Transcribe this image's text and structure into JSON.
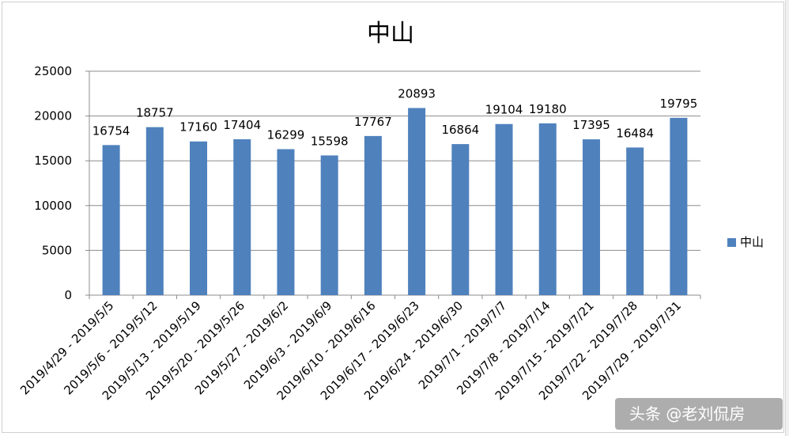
{
  "chart_data": {
    "type": "bar",
    "title": "中山",
    "categories": [
      "2019/4/29 - 2019/5/5",
      "2019/5/6 - 2019/5/12",
      "2019/5/13 - 2019/5/19",
      "2019/5/20 - 2019/5/26",
      "2019/5/27 - 2019/6/2",
      "2019/6/3 - 2019/6/9",
      "2019/6/10 - 2019/6/16",
      "2019/6/17 - 2019/6/23",
      "2019/6/24 - 2019/6/30",
      "2019/7/1 - 2019/7/7",
      "2019/7/8 - 2019/7/14",
      "2019/7/15 - 2019/7/21",
      "2019/7/22 - 2019/7/28",
      "2019/7/29 - 2019/7/31"
    ],
    "series": [
      {
        "name": "中山",
        "values": [
          16754,
          18757,
          17160,
          17404,
          16299,
          15598,
          17767,
          20893,
          16864,
          19104,
          19180,
          17395,
          16484,
          19795
        ]
      }
    ],
    "ylim": [
      0,
      25000
    ],
    "yticks": [
      0,
      5000,
      10000,
      15000,
      20000,
      25000
    ],
    "grid": true,
    "legend": "right",
    "xlabel": "",
    "ylabel": "",
    "colors": {
      "bar": "#4f81bd",
      "grid": "#8c8c8c",
      "axis": "#8c8c8c"
    }
  },
  "watermark": "头条 @老刘侃房"
}
